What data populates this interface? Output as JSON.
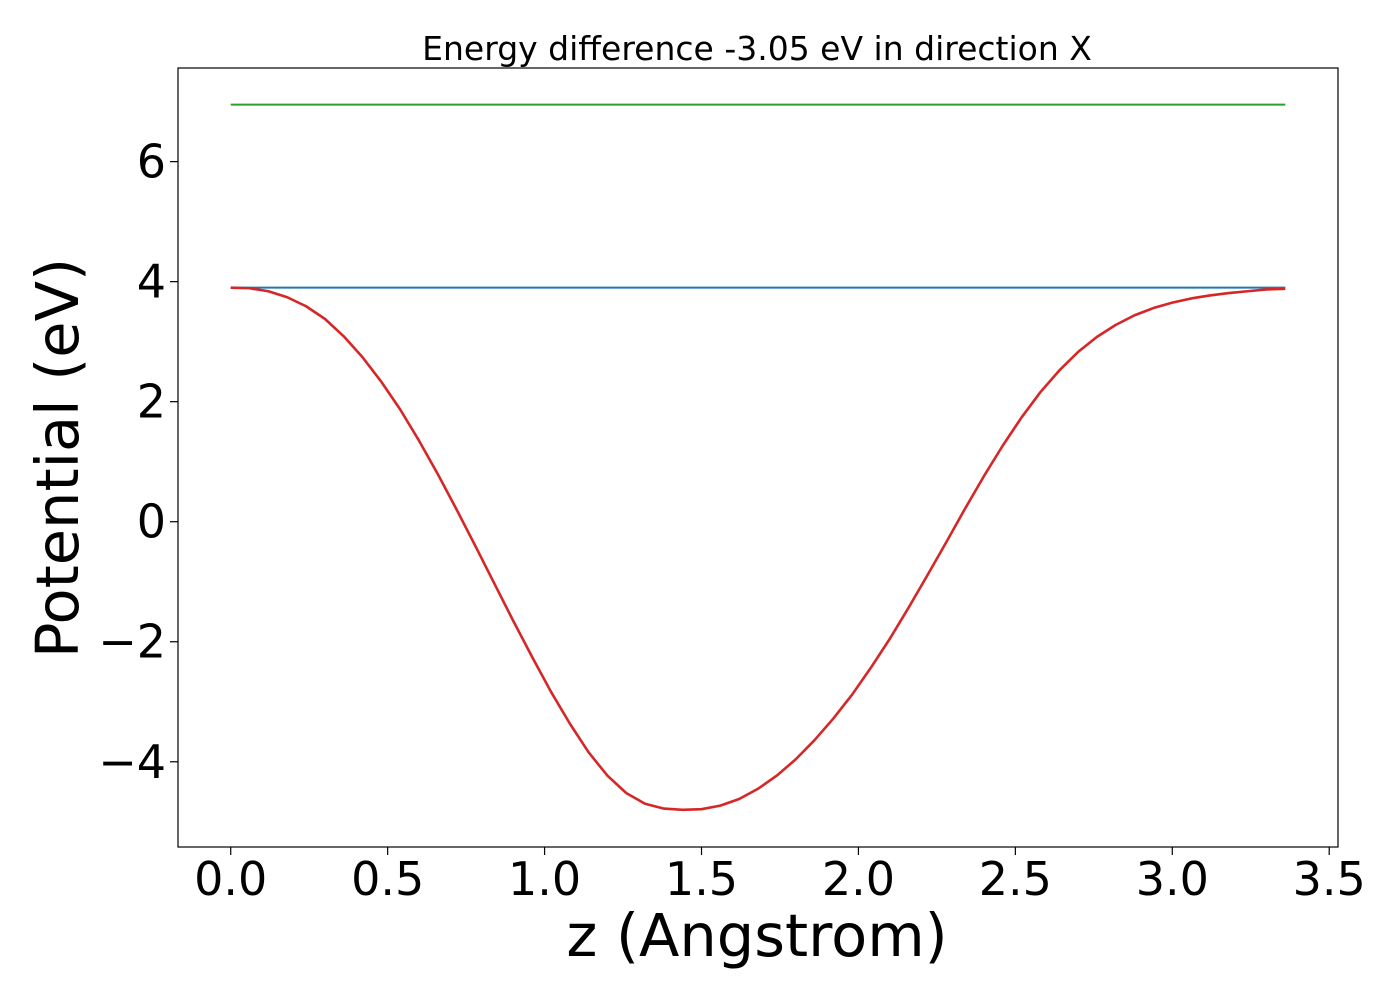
{
  "chart_data": {
    "type": "line",
    "title": "Energy difference -3.05 eV in direction X",
    "xlabel": "z (Angstrom)",
    "ylabel": "Potential (eV)",
    "xlim": [
      -0.168,
      3.528
    ],
    "ylim": [
      -5.42,
      7.56
    ],
    "xticks": [
      0.0,
      0.5,
      1.0,
      1.5,
      2.0,
      2.5,
      3.0,
      3.5
    ],
    "xtick_labels": [
      "0.0",
      "0.5",
      "1.0",
      "1.5",
      "2.0",
      "2.5",
      "3.0",
      "3.5"
    ],
    "yticks": [
      -4,
      -2,
      0,
      2,
      4,
      6
    ],
    "ytick_labels": [
      "−4",
      "−2",
      "0",
      "2",
      "4",
      "6"
    ],
    "grid": false,
    "legend": false,
    "series": [
      {
        "color": "#2ca02c",
        "x": [
          0.0,
          3.36
        ],
        "y": [
          6.95,
          6.95
        ]
      },
      {
        "color": "#1f77b4",
        "x": [
          0.0,
          3.36
        ],
        "y": [
          3.9,
          3.9
        ]
      },
      {
        "color": "#d62728",
        "x": [
          0.0,
          0.06,
          0.12,
          0.18,
          0.24,
          0.3,
          0.36,
          0.42,
          0.48,
          0.54,
          0.6,
          0.66,
          0.72,
          0.78,
          0.84,
          0.9,
          0.96,
          1.02,
          1.08,
          1.14,
          1.2,
          1.26,
          1.32,
          1.38,
          1.44,
          1.5,
          1.56,
          1.62,
          1.68,
          1.74,
          1.8,
          1.86,
          1.92,
          1.98,
          2.04,
          2.1,
          2.16,
          2.22,
          2.28,
          2.34,
          2.4,
          2.46,
          2.52,
          2.58,
          2.64,
          2.7,
          2.76,
          2.82,
          2.88,
          2.94,
          3.0,
          3.06,
          3.12,
          3.18,
          3.24,
          3.3,
          3.36
        ],
        "y": [
          3.9,
          3.89,
          3.84,
          3.74,
          3.59,
          3.38,
          3.09,
          2.74,
          2.33,
          1.87,
          1.35,
          0.79,
          0.2,
          -0.41,
          -1.03,
          -1.65,
          -2.25,
          -2.83,
          -3.36,
          -3.84,
          -4.23,
          -4.52,
          -4.7,
          -4.78,
          -4.8,
          -4.79,
          -4.73,
          -4.62,
          -4.45,
          -4.23,
          -3.96,
          -3.64,
          -3.28,
          -2.88,
          -2.43,
          -1.95,
          -1.43,
          -0.89,
          -0.34,
          0.22,
          0.76,
          1.27,
          1.74,
          2.16,
          2.52,
          2.83,
          3.08,
          3.28,
          3.44,
          3.56,
          3.65,
          3.72,
          3.77,
          3.81,
          3.84,
          3.87,
          3.88
        ]
      }
    ]
  }
}
